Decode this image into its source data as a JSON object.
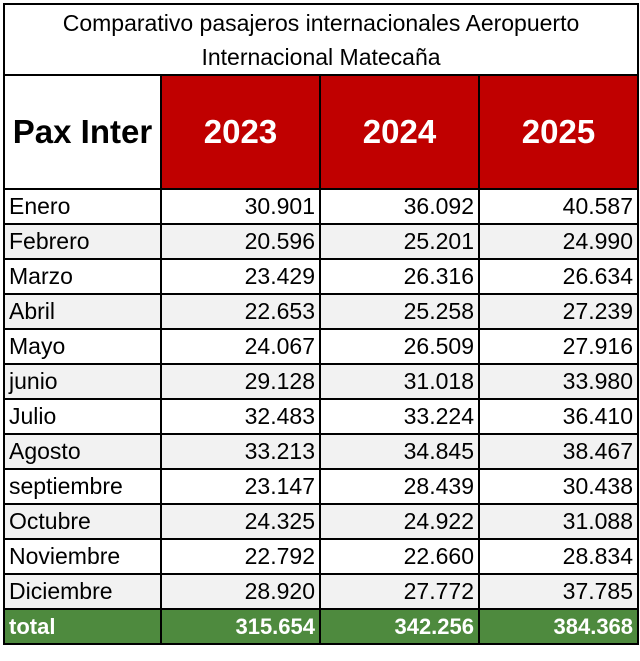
{
  "title": {
    "line1": "Comparativo pasajeros internacionales Aeropuerto",
    "line2": "Internacional Matecaña"
  },
  "header": {
    "label": "Pax Inter",
    "years": [
      "2023",
      "2024",
      "2025"
    ]
  },
  "rows": [
    {
      "month": "Enero",
      "values": [
        "30.901",
        "36.092",
        "40.587"
      ]
    },
    {
      "month": "Febrero",
      "values": [
        "20.596",
        "25.201",
        "24.990"
      ]
    },
    {
      "month": "Marzo",
      "values": [
        "23.429",
        "26.316",
        "26.634"
      ]
    },
    {
      "month": "Abril",
      "values": [
        "22.653",
        "25.258",
        "27.239"
      ]
    },
    {
      "month": "Mayo",
      "values": [
        "24.067",
        "26.509",
        "27.916"
      ]
    },
    {
      "month": "junio",
      "values": [
        "29.128",
        "31.018",
        "33.980"
      ]
    },
    {
      "month": "Julio",
      "values": [
        "32.483",
        "33.224",
        "36.410"
      ]
    },
    {
      "month": "Agosto",
      "values": [
        "33.213",
        "34.845",
        "38.467"
      ]
    },
    {
      "month": "septiembre",
      "values": [
        "23.147",
        "28.439",
        "30.438"
      ]
    },
    {
      "month": "Octubre",
      "values": [
        "24.325",
        "24.922",
        "31.088"
      ]
    },
    {
      "month": "Noviembre",
      "values": [
        "22.792",
        "22.660",
        "28.834"
      ]
    },
    {
      "month": "Diciembre",
      "values": [
        "28.920",
        "27.772",
        "37.785"
      ]
    }
  ],
  "total": {
    "label": "total",
    "values": [
      "315.654",
      "342.256",
      "384.368"
    ]
  },
  "colors": {
    "header_red": "#c00000",
    "total_green": "#4e8a3e",
    "stripe_gray": "#f2f2f2"
  }
}
